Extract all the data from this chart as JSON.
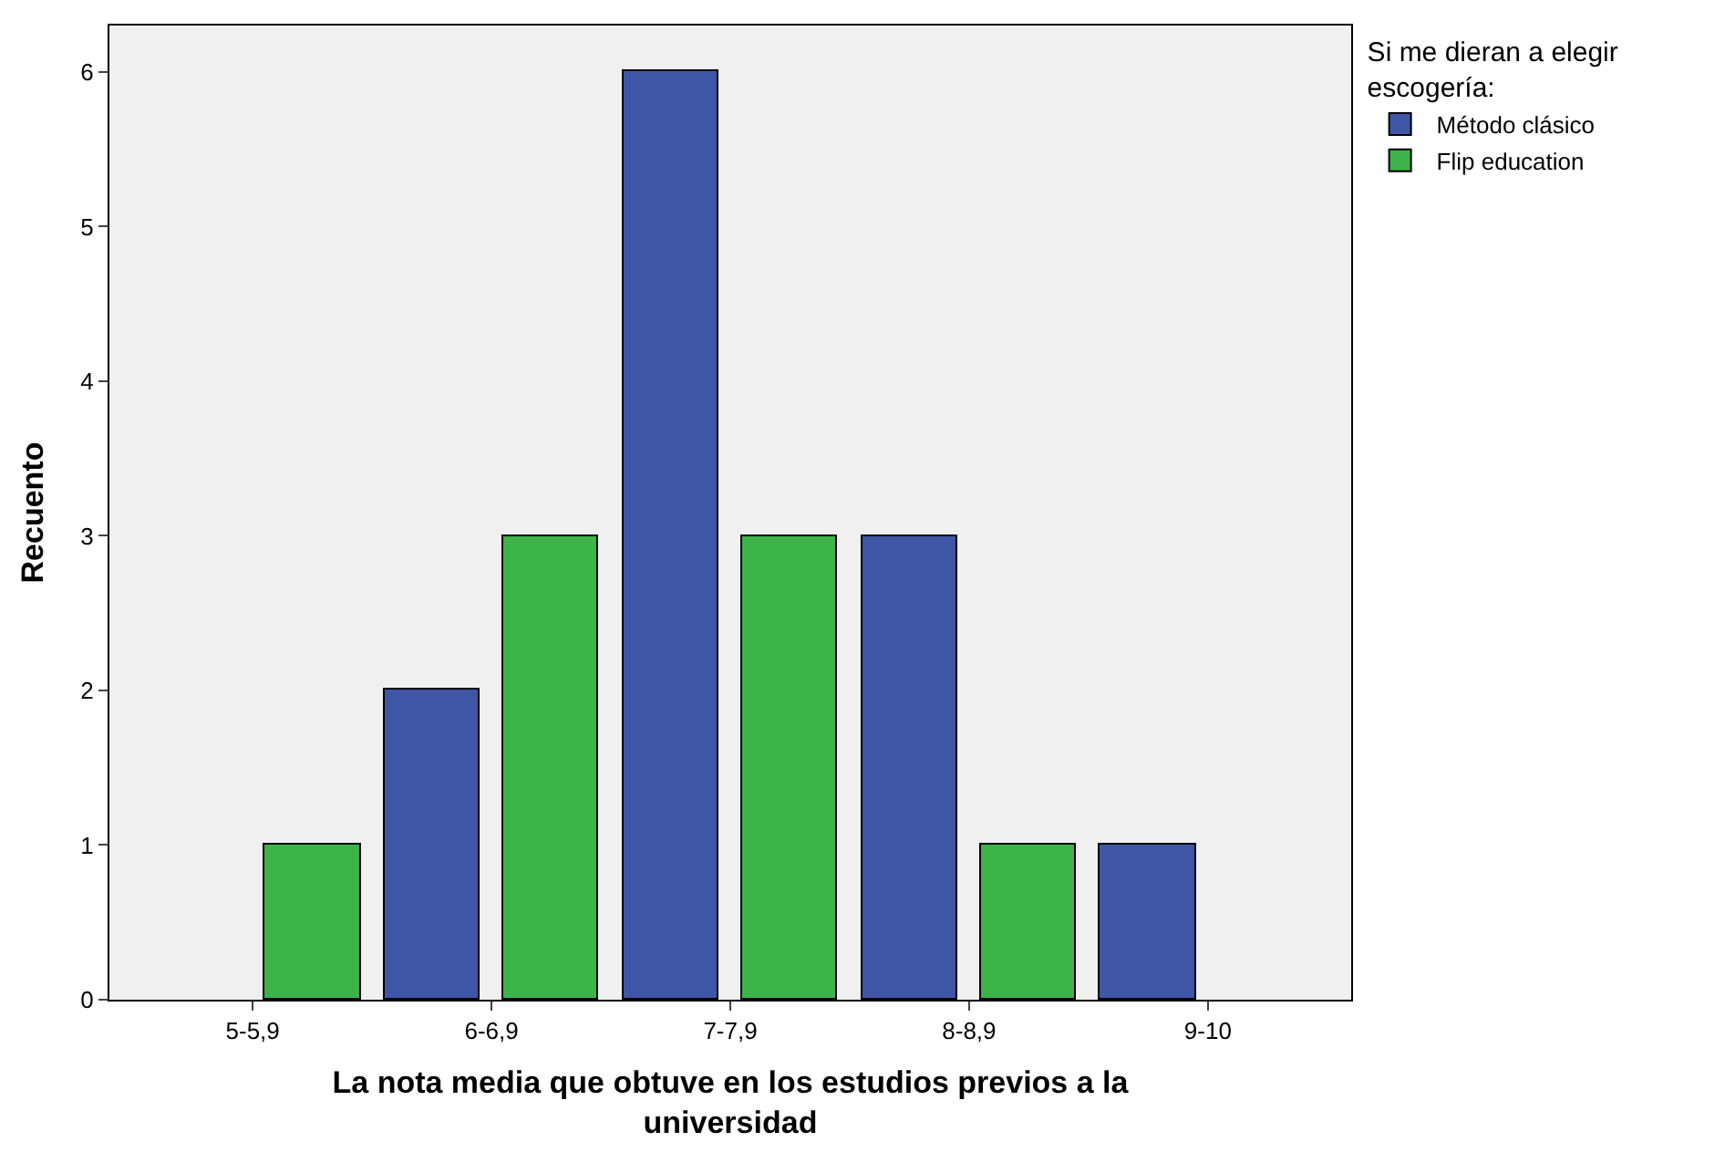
{
  "chart_data": {
    "type": "bar",
    "xlabel": "La nota media que obtuve en los estudios previos a la universidad",
    "ylabel": "Recuento",
    "legend_title": "Si me dieran a elegir escogería:",
    "categories": [
      "5-5,9",
      "6-6,9",
      "7-7,9",
      "8-8,9",
      "9-10"
    ],
    "series": [
      {
        "name": "Método clásico",
        "color": "#3f56a6",
        "values": [
          null,
          2,
          6,
          3,
          1
        ]
      },
      {
        "name": "Flip education",
        "color": "#3cb449",
        "values": [
          1,
          3,
          3,
          1,
          null
        ]
      }
    ],
    "ylim": [
      0,
      6.3
    ],
    "yticks": [
      0,
      1,
      2,
      3,
      4,
      5,
      6
    ],
    "grid": false,
    "legend": "top right"
  }
}
